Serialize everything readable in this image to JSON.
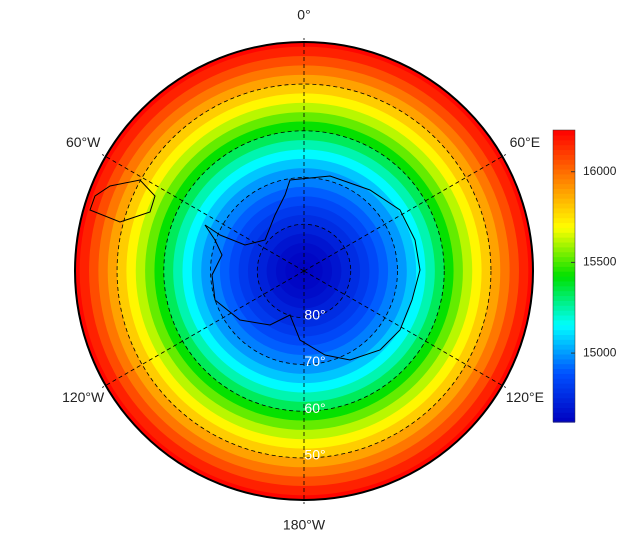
{
  "map": {
    "lat_range": [
      90,
      41
    ],
    "field": {
      "lat": [
        88,
        86,
        84,
        82,
        80,
        78,
        76,
        74,
        72,
        70,
        68,
        66,
        64,
        62,
        60,
        58,
        56,
        54,
        52,
        50,
        48,
        46,
        44,
        42,
        41
      ],
      "values": [
        14630,
        14640,
        14660,
        14690,
        14730,
        14770,
        14810,
        14860,
        14910,
        14960,
        15000,
        15070,
        15150,
        15240,
        15330,
        15430,
        15530,
        15620,
        15710,
        15800,
        15890,
        15980,
        16070,
        16160,
        16220
      ]
    },
    "lat_circles": [
      {
        "value": 80,
        "label": "80°"
      },
      {
        "value": 70,
        "label": "70°"
      },
      {
        "value": 60,
        "label": "60°"
      },
      {
        "value": 50,
        "label": "50°"
      }
    ],
    "meridians": [
      {
        "value": 0,
        "label": "0°"
      },
      {
        "value": 60,
        "label": "60°E"
      },
      {
        "value": 120,
        "label": "120°E"
      },
      {
        "value": 180,
        "label": "180°W"
      },
      {
        "value": -120,
        "label": "120°W"
      },
      {
        "value": -60,
        "label": "60°W"
      }
    ],
    "colorbar": {
      "lim": [
        14620,
        16230
      ],
      "ticks": [
        15000,
        15500,
        16000
      ],
      "colormap": [
        "#0000c0",
        "#0050ff",
        "#00ffff",
        "#00e000",
        "#ffff00",
        "#ff8000",
        "#ff0000"
      ]
    }
  }
}
